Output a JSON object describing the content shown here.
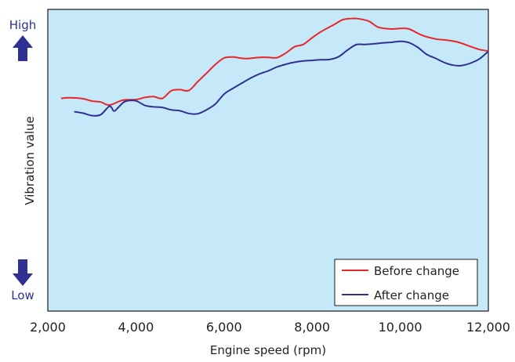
{
  "chart_data": {
    "type": "line",
    "title": "",
    "xlabel": "Engine speed (rpm)",
    "ylabel": "Vibration value",
    "x_ticks": [
      "2,000",
      "4,000",
      "6,000",
      "8,000",
      "10,000",
      "12,000"
    ],
    "x_tick_values": [
      2000,
      4000,
      6000,
      8000,
      10000,
      12000
    ],
    "xlim": [
      2000,
      12000
    ],
    "ylim": [
      0,
      100
    ],
    "y_high_label": "High",
    "y_low_label": "Low",
    "background_color": "#c5e9f8",
    "grid": false,
    "legend_position": "bottom-right",
    "series": [
      {
        "name": "Before change",
        "color": "#e8262b",
        "x": [
          2300,
          2500,
          2800,
          3000,
          3200,
          3400,
          3700,
          4000,
          4200,
          4400,
          4600,
          4800,
          5000,
          5200,
          5400,
          5600,
          5800,
          6000,
          6200,
          6500,
          6800,
          7000,
          7200,
          7400,
          7600,
          7800,
          8000,
          8200,
          8500,
          8700,
          8900,
          9100,
          9300,
          9500,
          9800,
          10000,
          10200,
          10500,
          10800,
          11000,
          11300,
          11600,
          11800,
          12000
        ],
        "y": [
          70.5,
          70.7,
          70.4,
          69.6,
          69.3,
          68.3,
          69.9,
          70.1,
          70.8,
          71.1,
          70.5,
          73.0,
          73.4,
          73.1,
          76.0,
          78.8,
          81.7,
          83.9,
          84.2,
          83.7,
          84.1,
          84.1,
          84.0,
          85.5,
          87.6,
          88.4,
          90.6,
          92.6,
          95.0,
          96.6,
          97.0,
          96.8,
          96.0,
          94.1,
          93.5,
          93.7,
          93.5,
          91.4,
          90.2,
          89.9,
          89.2,
          87.7,
          86.7,
          86.2
        ]
      },
      {
        "name": "After change",
        "color": "#2e3192",
        "x": [
          2600,
          2800,
          3000,
          3200,
          3400,
          3500,
          3600,
          3700,
          3800,
          4000,
          4200,
          4400,
          4600,
          4800,
          5000,
          5200,
          5400,
          5600,
          5800,
          6000,
          6200,
          6400,
          6600,
          6800,
          7000,
          7200,
          7400,
          7600,
          7800,
          8000,
          8200,
          8400,
          8600,
          8800,
          9000,
          9200,
          9400,
          9600,
          9800,
          10000,
          10200,
          10400,
          10600,
          10800,
          11000,
          11200,
          11400,
          11600,
          11800,
          12000
        ],
        "y": [
          66.1,
          65.6,
          64.8,
          65.1,
          67.9,
          66.3,
          67.5,
          69.0,
          69.7,
          69.7,
          68.2,
          67.7,
          67.5,
          66.7,
          66.4,
          65.5,
          65.4,
          66.7,
          68.6,
          71.9,
          73.8,
          75.5,
          77.2,
          78.6,
          79.6,
          80.9,
          81.8,
          82.5,
          82.9,
          83.1,
          83.3,
          83.4,
          84.3,
          86.5,
          88.3,
          88.4,
          88.6,
          88.9,
          89.1,
          89.4,
          89.0,
          87.4,
          85.1,
          83.8,
          82.4,
          81.5,
          81.4,
          82.2,
          83.6,
          86.1
        ]
      }
    ]
  }
}
